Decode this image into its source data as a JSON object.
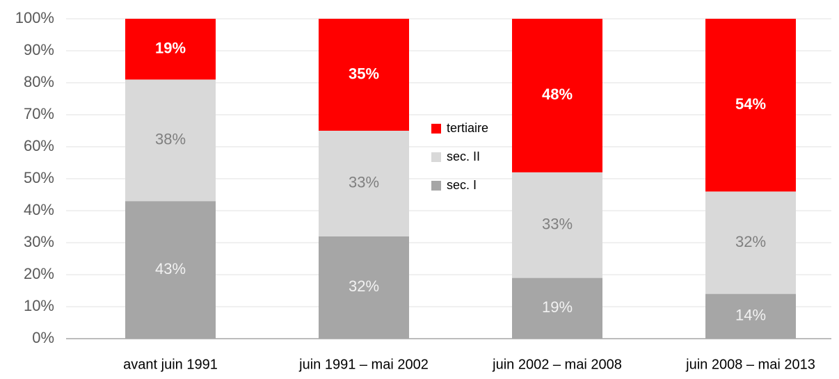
{
  "chart_data": {
    "type": "stacked_bar_100",
    "categories": [
      "avant juin 1991",
      "juin 1991 – mai 2002",
      "juin 2002 – mai 2008",
      "juin 2008 – mai 2013"
    ],
    "series": [
      {
        "name": "sec. I",
        "color": "#a6a6a6",
        "label_color": "#f2f2f2",
        "label_bold": false,
        "values": [
          43,
          32,
          19,
          14
        ],
        "value_labels": [
          "43%",
          "32%",
          "19%",
          "14%"
        ]
      },
      {
        "name": "sec. II",
        "color": "#d9d9d9",
        "label_color": "#7f7f7f",
        "label_bold": false,
        "values": [
          38,
          33,
          33,
          32
        ],
        "value_labels": [
          "38%",
          "33%",
          "33%",
          "32%"
        ]
      },
      {
        "name": "tertiaire",
        "color": "#ff0000",
        "label_color": "#ffffff",
        "label_bold": true,
        "values": [
          19,
          35,
          48,
          54
        ],
        "value_labels": [
          "19%",
          "35%",
          "48%",
          "54%"
        ]
      }
    ],
    "ylim": [
      0,
      100
    ],
    "yticks": [
      {
        "value": 0,
        "label": "0%"
      },
      {
        "value": 10,
        "label": "10%"
      },
      {
        "value": 20,
        "label": "20%"
      },
      {
        "value": 30,
        "label": "30%"
      },
      {
        "value": 40,
        "label": "40%"
      },
      {
        "value": 50,
        "label": "50%"
      },
      {
        "value": 60,
        "label": "60%"
      },
      {
        "value": 70,
        "label": "70%"
      },
      {
        "value": 80,
        "label": "80%"
      },
      {
        "value": 90,
        "label": "90%"
      },
      {
        "value": 100,
        "label": "100%"
      }
    ],
    "grid": true
  }
}
